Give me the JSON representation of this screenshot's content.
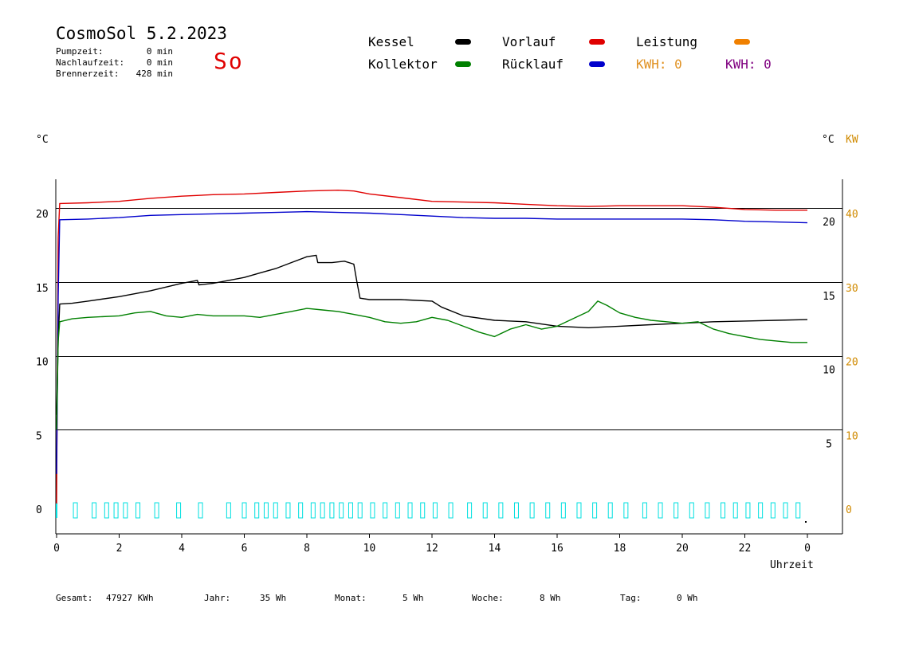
{
  "header": {
    "title": "CosmoSol 5.2.2023",
    "day": "So",
    "stats": [
      {
        "label": "Pumpzeit:",
        "value": "0 min"
      },
      {
        "label": "Nachlaufzeit:",
        "value": "0 min"
      },
      {
        "label": "Brennerzeit:",
        "value": "428 min"
      }
    ]
  },
  "legend": {
    "kessel": "Kessel",
    "kollektor": "Kollektor",
    "vorlauf": "Vorlauf",
    "ruecklauf": "Rücklauf",
    "leistung": "Leistung",
    "kwh1": "KWH: 0",
    "kwh2": "KWH: 0"
  },
  "axes": {
    "left_unit": "°C",
    "right_unit_c": "°C",
    "right_unit_kw": "KW",
    "x_label": "Uhrzeit"
  },
  "footer": {
    "gesamt_label": "Gesamt:",
    "gesamt_value": "47927 KWh",
    "jahr_label": "Jahr:",
    "jahr_value": "35 Wh",
    "monat_label": "Monat:",
    "monat_value": "5 Wh",
    "woche_label": "Woche:",
    "woche_value": "8 Wh",
    "tag_label": "Tag:",
    "tag_value": "0 Wh"
  },
  "colors": {
    "kessel": "#000000",
    "kollektor": "#008000",
    "vorlauf": "#e00000",
    "ruecklauf": "#0000cc",
    "leistung": "#f08000",
    "kwh1": "#e09020",
    "kwh2": "#800080",
    "pump": "#00e0e0",
    "kw_axis": "#d08a00"
  },
  "chart_data": {
    "type": "line",
    "xlabel": "Uhrzeit",
    "ylabel": "°C",
    "x_ticks": [
      "0",
      "2",
      "4",
      "6",
      "8",
      "10",
      "12",
      "14",
      "16",
      "18",
      "20",
      "22",
      "0"
    ],
    "xlim": [
      0,
      24
    ],
    "ylim": [
      -1.5,
      22.5
    ],
    "y_ticks_left": [
      "0",
      "5",
      "10",
      "15",
      "20"
    ],
    "y_ticks_right_c": [
      "5",
      "10",
      "15",
      "20"
    ],
    "y_ticks_right_kw": [
      "0",
      "10",
      "20",
      "30",
      "40"
    ],
    "grid": "horizontal",
    "series": [
      {
        "name": "Vorlauf",
        "points": [
          [
            0,
            0
          ],
          [
            0.05,
            18
          ],
          [
            0.1,
            20.3
          ],
          [
            1,
            20.35
          ],
          [
            2,
            20.45
          ],
          [
            3,
            20.65
          ],
          [
            4,
            20.8
          ],
          [
            5,
            20.9
          ],
          [
            6,
            20.95
          ],
          [
            7,
            21.05
          ],
          [
            8,
            21.15
          ],
          [
            9,
            21.2
          ],
          [
            9.5,
            21.15
          ],
          [
            10,
            20.95
          ],
          [
            11,
            20.7
          ],
          [
            12,
            20.45
          ],
          [
            13,
            20.4
          ],
          [
            14,
            20.35
          ],
          [
            15,
            20.25
          ],
          [
            16,
            20.15
          ],
          [
            17,
            20.1
          ],
          [
            18,
            20.15
          ],
          [
            19,
            20.15
          ],
          [
            20,
            20.15
          ],
          [
            21,
            20.05
          ],
          [
            22,
            19.9
          ],
          [
            23,
            19.85
          ],
          [
            24,
            19.85
          ]
        ]
      },
      {
        "name": "Rücklauf",
        "points": [
          [
            0,
            2
          ],
          [
            0.05,
            14
          ],
          [
            0.1,
            19.2
          ],
          [
            1,
            19.25
          ],
          [
            2,
            19.35
          ],
          [
            3,
            19.5
          ],
          [
            4,
            19.55
          ],
          [
            5,
            19.6
          ],
          [
            6,
            19.65
          ],
          [
            7,
            19.7
          ],
          [
            8,
            19.75
          ],
          [
            9,
            19.7
          ],
          [
            10,
            19.65
          ],
          [
            11,
            19.55
          ],
          [
            12,
            19.45
          ],
          [
            13,
            19.35
          ],
          [
            14,
            19.3
          ],
          [
            15,
            19.3
          ],
          [
            16,
            19.25
          ],
          [
            17,
            19.25
          ],
          [
            18,
            19.25
          ],
          [
            19,
            19.25
          ],
          [
            20,
            19.25
          ],
          [
            21,
            19.2
          ],
          [
            22,
            19.1
          ],
          [
            23,
            19.05
          ],
          [
            24,
            19.0
          ]
        ]
      },
      {
        "name": "Kessel",
        "points": [
          [
            0,
            6
          ],
          [
            0.05,
            11
          ],
          [
            0.1,
            13.5
          ],
          [
            0.5,
            13.55
          ],
          [
            1,
            13.7
          ],
          [
            2,
            14.0
          ],
          [
            3,
            14.4
          ],
          [
            4,
            14.9
          ],
          [
            4.5,
            15.1
          ],
          [
            4.55,
            14.8
          ],
          [
            5,
            14.9
          ],
          [
            5.5,
            15.1
          ],
          [
            6,
            15.3
          ],
          [
            6.5,
            15.6
          ],
          [
            7,
            15.9
          ],
          [
            7.5,
            16.3
          ],
          [
            8,
            16.7
          ],
          [
            8.3,
            16.8
          ],
          [
            8.35,
            16.3
          ],
          [
            8.8,
            16.3
          ],
          [
            9.2,
            16.4
          ],
          [
            9.5,
            16.2
          ],
          [
            9.6,
            15.0
          ],
          [
            9.7,
            13.9
          ],
          [
            10,
            13.8
          ],
          [
            11,
            13.8
          ],
          [
            12,
            13.7
          ],
          [
            12.3,
            13.3
          ],
          [
            13,
            12.7
          ],
          [
            14,
            12.4
          ],
          [
            15,
            12.3
          ],
          [
            16,
            12.0
          ],
          [
            17,
            11.9
          ],
          [
            18,
            12.0
          ],
          [
            19,
            12.1
          ],
          [
            20,
            12.2
          ],
          [
            21,
            12.3
          ],
          [
            22,
            12.35
          ],
          [
            23,
            12.4
          ],
          [
            24,
            12.45
          ]
        ]
      },
      {
        "name": "Kollektor",
        "points": [
          [
            0,
            5
          ],
          [
            0.05,
            11
          ],
          [
            0.1,
            12.3
          ],
          [
            0.5,
            12.5
          ],
          [
            1,
            12.6
          ],
          [
            2,
            12.7
          ],
          [
            2.5,
            12.9
          ],
          [
            3,
            13.0
          ],
          [
            3.5,
            12.7
          ],
          [
            4,
            12.6
          ],
          [
            4.5,
            12.8
          ],
          [
            5,
            12.7
          ],
          [
            6,
            12.7
          ],
          [
            6.5,
            12.6
          ],
          [
            7,
            12.8
          ],
          [
            7.5,
            13.0
          ],
          [
            8,
            13.2
          ],
          [
            8.5,
            13.1
          ],
          [
            9,
            13.0
          ],
          [
            9.5,
            12.8
          ],
          [
            10,
            12.6
          ],
          [
            10.5,
            12.3
          ],
          [
            11,
            12.2
          ],
          [
            11.5,
            12.3
          ],
          [
            12,
            12.6
          ],
          [
            12.5,
            12.4
          ],
          [
            13,
            12.0
          ],
          [
            13.5,
            11.6
          ],
          [
            14,
            11.3
          ],
          [
            14.5,
            11.8
          ],
          [
            15,
            12.1
          ],
          [
            15.5,
            11.8
          ],
          [
            16,
            12.0
          ],
          [
            16.5,
            12.5
          ],
          [
            17,
            13.0
          ],
          [
            17.3,
            13.7
          ],
          [
            17.6,
            13.4
          ],
          [
            18,
            12.9
          ],
          [
            18.5,
            12.6
          ],
          [
            19,
            12.4
          ],
          [
            19.5,
            12.3
          ],
          [
            20,
            12.2
          ],
          [
            20.5,
            12.3
          ],
          [
            21,
            11.8
          ],
          [
            21.5,
            11.5
          ],
          [
            22,
            11.3
          ],
          [
            22.5,
            11.1
          ],
          [
            23,
            11.0
          ],
          [
            23.5,
            10.9
          ],
          [
            24,
            10.9
          ]
        ]
      }
    ],
    "pump_pulses": [
      0.6,
      1.2,
      1.6,
      1.9,
      2.2,
      2.6,
      3.2,
      3.9,
      4.6,
      5.5,
      6.0,
      6.4,
      6.7,
      7.0,
      7.4,
      7.8,
      8.2,
      8.5,
      8.8,
      9.1,
      9.4,
      9.7,
      10.1,
      10.5,
      10.9,
      11.3,
      11.7,
      12.1,
      12.6,
      13.2,
      13.7,
      14.2,
      14.7,
      15.2,
      15.7,
      16.2,
      16.7,
      17.2,
      17.7,
      18.2,
      18.8,
      19.3,
      19.8,
      20.3,
      20.8,
      21.3,
      21.7,
      22.1,
      22.5,
      22.9,
      23.3,
      23.7
    ]
  }
}
